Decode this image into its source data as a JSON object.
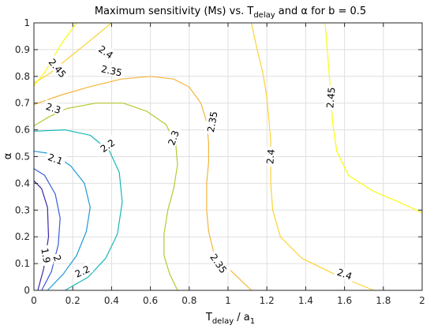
{
  "chart_data": {
    "type": "contour",
    "title": {
      "main": "Maximum sensitivity (Ms) vs. T",
      "sub": "delay",
      "rest": " and α for b = 0.5"
    },
    "xlabel": {
      "main": "T",
      "sub1": "delay",
      "mid": " / a",
      "sub2": "1"
    },
    "ylabel": "α",
    "xlim": [
      0,
      2
    ],
    "ylim": [
      0,
      1
    ],
    "grid": true,
    "x_ticks": [
      "0",
      "0.2",
      "0.4",
      "0.6",
      "0.8",
      "1",
      "1.2",
      "1.4",
      "1.6",
      "1.8",
      "2"
    ],
    "y_ticks": [
      "0",
      "0.1",
      "0.2",
      "0.3",
      "0.4",
      "0.5",
      "0.6",
      "0.7",
      "0.8",
      "0.9",
      "1"
    ],
    "colormap": [
      "#3e26a8",
      "#3a5bd9",
      "#1e9ad5",
      "#18b7b7",
      "#5cc86a",
      "#b8c832",
      "#f5b53c",
      "#fcd333",
      "#f9fb0e"
    ],
    "levels": [
      {
        "value": 1.9,
        "label": "1.9",
        "color": "#3e26a8",
        "lines": [
          [
            [
              0.02,
              0.0
            ],
            [
              0.05,
              0.08
            ],
            [
              0.075,
              0.2
            ],
            [
              0.07,
              0.31
            ],
            [
              0.04,
              0.38
            ],
            [
              0.0,
              0.41
            ]
          ]
        ]
      },
      {
        "value": 2.0,
        "label": "2",
        "color": "#3a5bd9",
        "lines": [
          [
            [
              0.04,
              0.0
            ],
            [
              0.09,
              0.07
            ],
            [
              0.125,
              0.17
            ],
            [
              0.135,
              0.27
            ],
            [
              0.11,
              0.36
            ],
            [
              0.055,
              0.43
            ],
            [
              0.0,
              0.455
            ]
          ]
        ]
      },
      {
        "value": 2.1,
        "label": "2.1",
        "color": "#1e9ad5",
        "lines": [
          [
            [
              0.07,
              0.0
            ],
            [
              0.15,
              0.06
            ],
            [
              0.22,
              0.13
            ],
            [
              0.27,
              0.22
            ],
            [
              0.29,
              0.31
            ],
            [
              0.26,
              0.4
            ],
            [
              0.19,
              0.465
            ],
            [
              0.1,
              0.51
            ],
            [
              0.0,
              0.52
            ]
          ]
        ]
      },
      {
        "value": 2.2,
        "label": "2.2",
        "color": "#18b7b7",
        "lines": [
          [
            [
              0.16,
              0.0
            ],
            [
              0.28,
              0.05
            ],
            [
              0.37,
              0.12
            ],
            [
              0.43,
              0.21
            ],
            [
              0.455,
              0.33
            ],
            [
              0.44,
              0.44
            ],
            [
              0.39,
              0.52
            ],
            [
              0.29,
              0.58
            ],
            [
              0.16,
              0.6
            ],
            [
              0.0,
              0.595
            ]
          ]
        ]
      },
      {
        "value": 2.3,
        "label": "2.3",
        "color": "#b8c832",
        "lines": [
          [
            [
              0.74,
              0.0
            ],
            [
              0.7,
              0.06
            ],
            [
              0.67,
              0.13
            ],
            [
              0.67,
              0.21
            ],
            [
              0.69,
              0.3
            ],
            [
              0.72,
              0.38
            ],
            [
              0.74,
              0.47
            ],
            [
              0.73,
              0.55
            ],
            [
              0.68,
              0.62
            ],
            [
              0.58,
              0.67
            ],
            [
              0.46,
              0.7
            ],
            [
              0.32,
              0.7
            ],
            [
              0.17,
              0.68
            ],
            [
              0.08,
              0.65
            ],
            [
              0.0,
              0.615
            ]
          ],
          [
            [
              0.0,
              0.0
            ],
            [
              0.0,
              0.0
            ]
          ]
        ]
      },
      {
        "value": 2.35,
        "label": "2.35",
        "color": "#f5b53c",
        "lines": [
          [
            [
              1.12,
              0.0
            ],
            [
              1.02,
              0.07
            ],
            [
              0.93,
              0.13
            ],
            [
              0.9,
              0.22
            ],
            [
              0.89,
              0.3
            ],
            [
              0.89,
              0.4
            ],
            [
              0.9,
              0.48
            ],
            [
              0.9,
              0.55
            ],
            [
              0.89,
              0.63
            ],
            [
              0.86,
              0.7
            ],
            [
              0.8,
              0.76
            ],
            [
              0.72,
              0.79
            ],
            [
              0.6,
              0.8
            ],
            [
              0.45,
              0.79
            ],
            [
              0.28,
              0.76
            ],
            [
              0.14,
              0.73
            ],
            [
              0.0,
              0.695
            ]
          ]
        ]
      },
      {
        "value": 2.4,
        "label": "2.4",
        "color": "#fcd333",
        "lines": [
          [
            [
              1.75,
              0.0
            ],
            [
              1.55,
              0.06
            ],
            [
              1.38,
              0.12
            ],
            [
              1.27,
              0.2
            ],
            [
              1.23,
              0.3
            ],
            [
              1.22,
              0.4
            ],
            [
              1.22,
              0.48
            ],
            [
              1.22,
              0.56
            ],
            [
              1.21,
              0.64
            ],
            [
              1.2,
              0.72
            ],
            [
              1.18,
              0.81
            ],
            [
              1.15,
              0.9
            ],
            [
              1.12,
              1.0
            ]
          ],
          [
            [
              0.4,
              1.0
            ],
            [
              0.3,
              0.94
            ],
            [
              0.18,
              0.87
            ],
            [
              0.08,
              0.81
            ],
            [
              0.0,
              0.775
            ]
          ]
        ]
      },
      {
        "value": 2.45,
        "label": "2.45",
        "color": "#f9fb0e",
        "lines": [
          [
            [
              2.0,
              0.29
            ],
            [
              1.88,
              0.33
            ],
            [
              1.75,
              0.37
            ],
            [
              1.62,
              0.43
            ],
            [
              1.56,
              0.52
            ],
            [
              1.54,
              0.62
            ],
            [
              1.53,
              0.72
            ],
            [
              1.52,
              0.82
            ],
            [
              1.51,
              0.91
            ],
            [
              1.5,
              1.0
            ]
          ],
          [
            [
              0.22,
              1.0
            ],
            [
              0.14,
              0.92
            ],
            [
              0.06,
              0.82
            ],
            [
              0.0,
              0.765
            ]
          ]
        ]
      }
    ],
    "contour_labels": [
      {
        "text": "1.9",
        "x": 0.06,
        "y": 0.13,
        "angle": 80
      },
      {
        "text": "2",
        "x": 0.12,
        "y": 0.12,
        "angle": 70
      },
      {
        "text": "2.1",
        "x": 0.11,
        "y": 0.49,
        "angle": 20
      },
      {
        "text": "2.2",
        "x": 0.38,
        "y": 0.54,
        "angle": -35
      },
      {
        "text": "2.2",
        "x": 0.25,
        "y": 0.07,
        "angle": -25
      },
      {
        "text": "2.3",
        "x": 0.1,
        "y": 0.68,
        "angle": 18
      },
      {
        "text": "2.3",
        "x": 0.72,
        "y": 0.57,
        "angle": -70
      },
      {
        "text": "2.35",
        "x": 0.4,
        "y": 0.82,
        "angle": 12
      },
      {
        "text": "2.35",
        "x": 0.92,
        "y": 0.63,
        "angle": -80
      },
      {
        "text": "2.35",
        "x": 0.95,
        "y": 0.1,
        "angle": 55
      },
      {
        "text": "2.4",
        "x": 0.37,
        "y": 0.89,
        "angle": 35
      },
      {
        "text": "2.4",
        "x": 1.22,
        "y": 0.5,
        "angle": -85
      },
      {
        "text": "2.4",
        "x": 1.6,
        "y": 0.06,
        "angle": 20
      },
      {
        "text": "2.45",
        "x": 0.12,
        "y": 0.83,
        "angle": 50
      },
      {
        "text": "2.45",
        "x": 1.53,
        "y": 0.72,
        "angle": -85
      }
    ]
  }
}
